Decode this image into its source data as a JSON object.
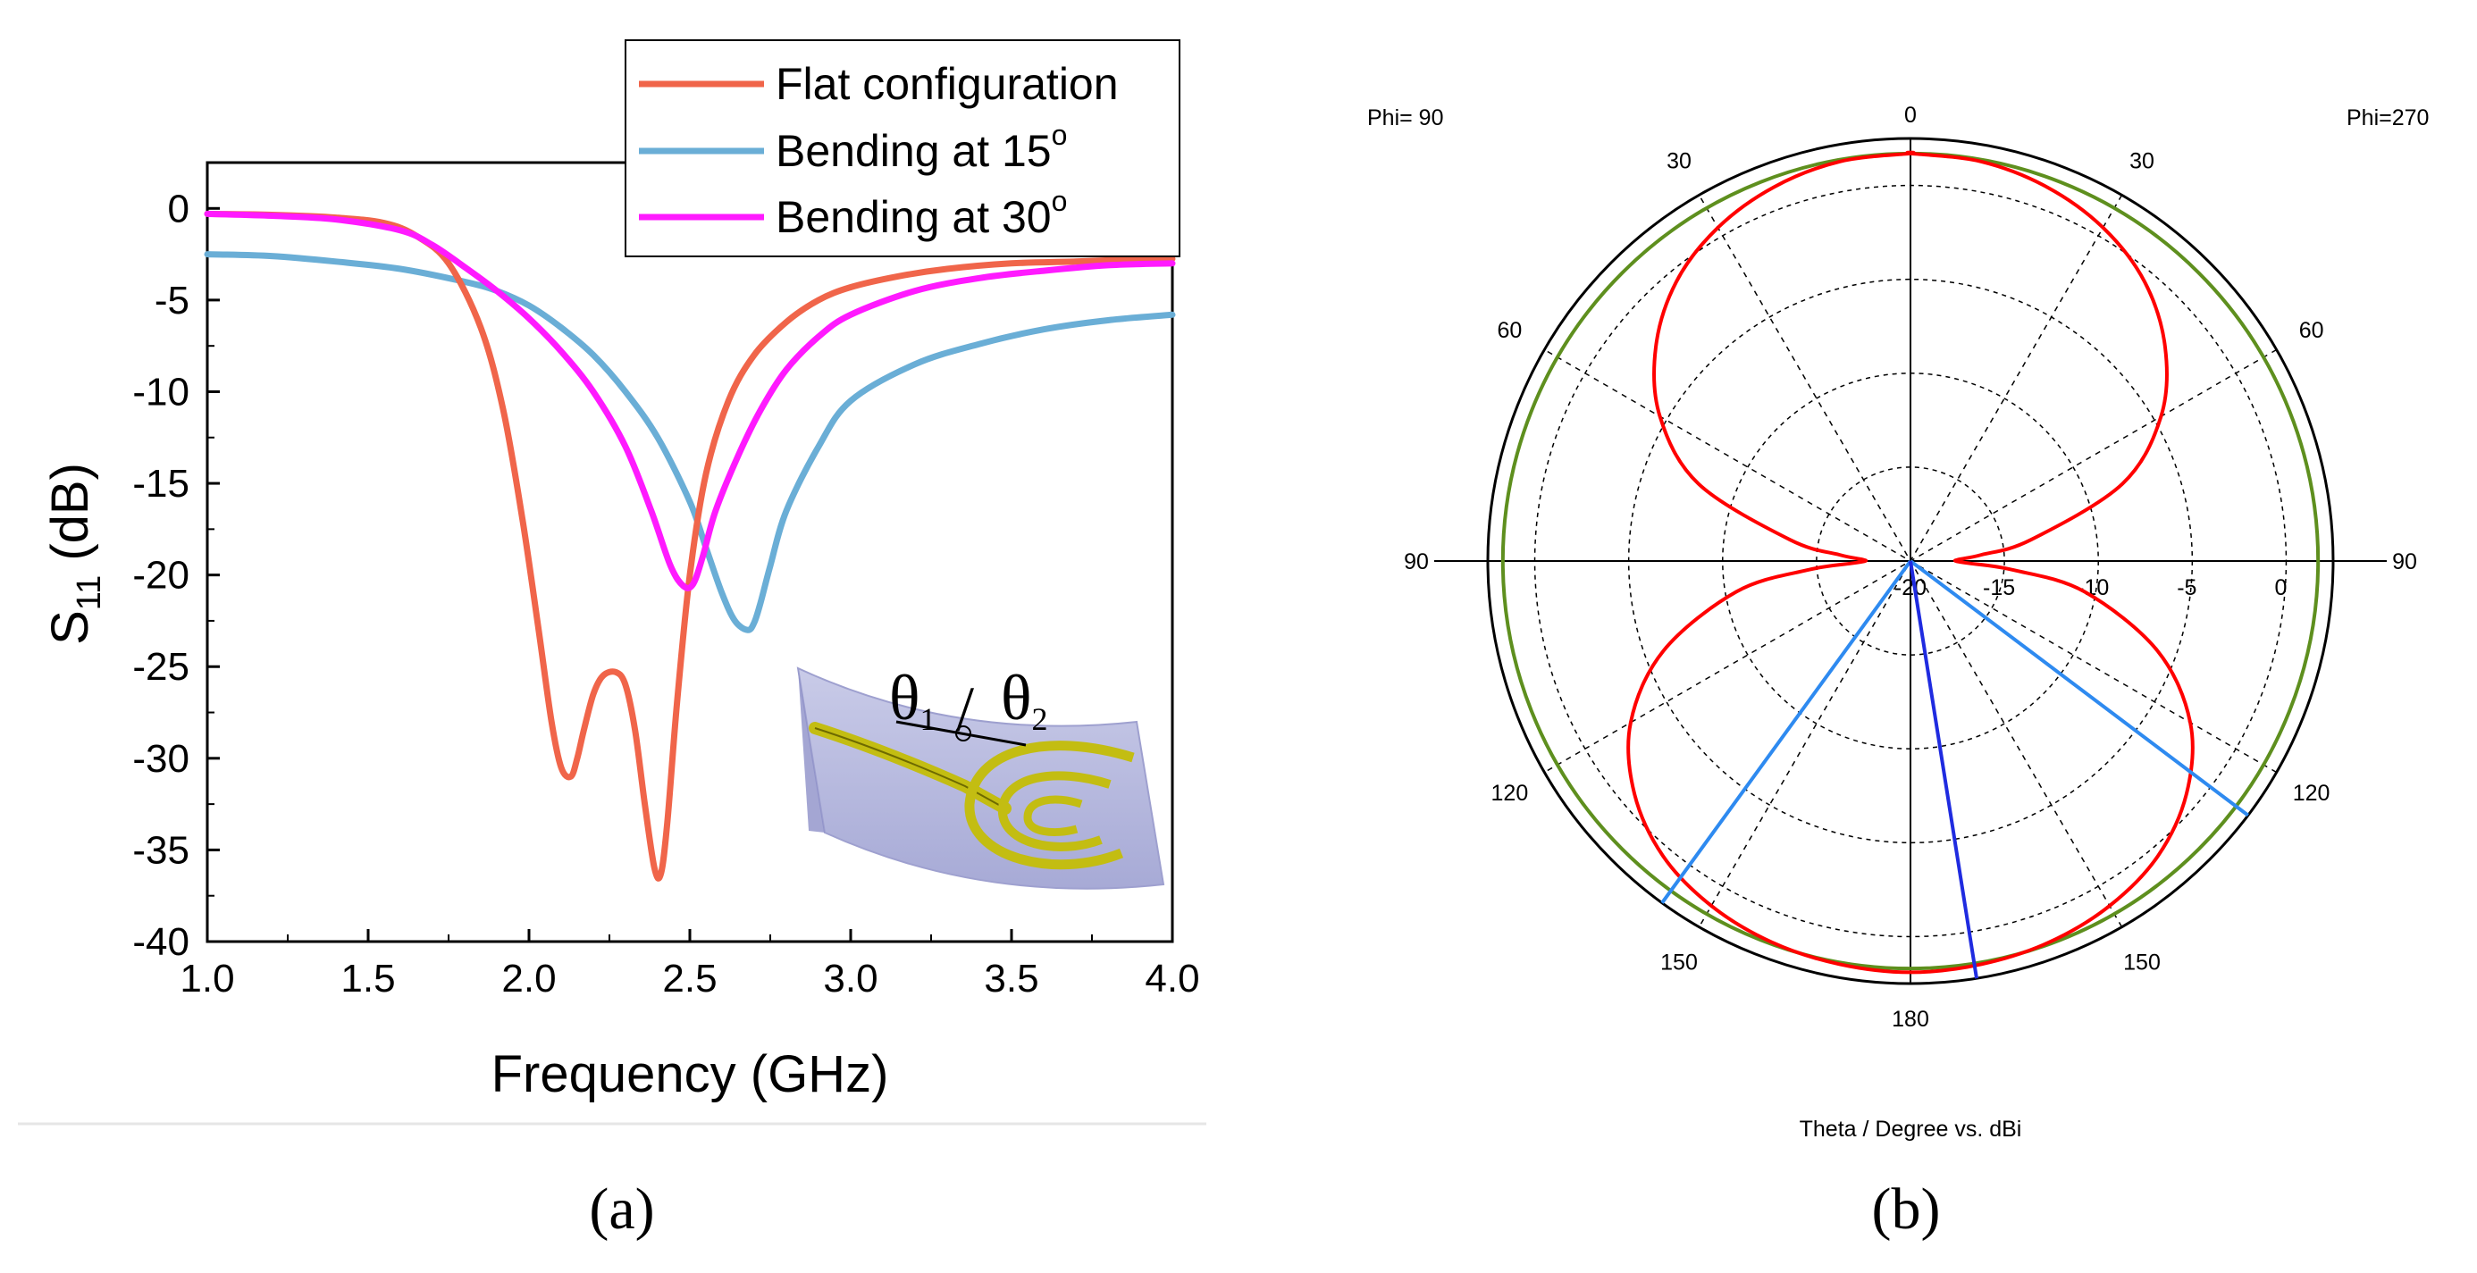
{
  "chart_data": [
    {
      "type": "line",
      "panel_label": "(a)",
      "xlabel": "Frequency (GHz)",
      "ylabel": {
        "main": "S",
        "sub": "11",
        "unit": " (dB)"
      },
      "xlim": [
        1.0,
        4.0
      ],
      "ylim": [
        -40,
        2.5
      ],
      "xticks": [
        1.0,
        1.5,
        2.0,
        2.5,
        3.0,
        3.5,
        4.0
      ],
      "xtick_labels": [
        "1.0",
        "1.5",
        "2.0",
        "2.5",
        "3.0",
        "3.5",
        "4.0"
      ],
      "yticks": [
        0,
        -5,
        -10,
        -15,
        -20,
        -25,
        -30,
        -35,
        -40
      ],
      "ytick_labels": [
        "0",
        "-5",
        "-10",
        "-15",
        "-20",
        "-25",
        "-30",
        "-35",
        "-40"
      ],
      "legend_position": "top-right",
      "series": [
        {
          "name": "Flat configuration",
          "label_main": "Flat configuration",
          "label_sup": "",
          "color": "#F0654A",
          "x": [
            1.0,
            1.2,
            1.4,
            1.55,
            1.65,
            1.75,
            1.85,
            1.92,
            1.98,
            2.03,
            2.07,
            2.1,
            2.13,
            2.15,
            2.17,
            2.2,
            2.23,
            2.27,
            2.3,
            2.33,
            2.36,
            2.39,
            2.41,
            2.43,
            2.46,
            2.5,
            2.55,
            2.62,
            2.7,
            2.8,
            2.9,
            3.0,
            3.15,
            3.3,
            3.5,
            3.7,
            3.85,
            4.0
          ],
          "y": [
            -0.3,
            -0.35,
            -0.5,
            -0.8,
            -1.5,
            -3.0,
            -6.5,
            -11.0,
            -17.0,
            -23.0,
            -28.0,
            -30.5,
            -31.0,
            -30.0,
            -28.5,
            -26.5,
            -25.5,
            -25.3,
            -26.0,
            -28.5,
            -32.5,
            -36.0,
            -36.3,
            -33.5,
            -27.0,
            -20.0,
            -14.5,
            -10.5,
            -8.0,
            -6.2,
            -5.0,
            -4.3,
            -3.7,
            -3.3,
            -3.0,
            -2.9,
            -2.8,
            -2.75
          ]
        },
        {
          "name": "Bending at 15o",
          "label_main": "Bending at 15",
          "label_sup": "o",
          "color": "#6AAED6",
          "x": [
            1.0,
            1.2,
            1.4,
            1.6,
            1.8,
            1.9,
            2.0,
            2.1,
            2.2,
            2.3,
            2.4,
            2.5,
            2.55,
            2.6,
            2.64,
            2.68,
            2.7,
            2.72,
            2.75,
            2.8,
            2.9,
            3.0,
            3.2,
            3.4,
            3.6,
            3.8,
            4.0
          ],
          "y": [
            -2.5,
            -2.6,
            -2.9,
            -3.3,
            -4.0,
            -4.5,
            -5.3,
            -6.5,
            -8.0,
            -10.0,
            -12.5,
            -16.0,
            -18.5,
            -21.0,
            -22.5,
            -23.0,
            -22.6,
            -21.5,
            -19.5,
            -16.5,
            -13.0,
            -10.5,
            -8.5,
            -7.4,
            -6.6,
            -6.1,
            -5.8
          ]
        },
        {
          "name": "Bending at 30o",
          "label_main": "Bending at 30",
          "label_sup": "o",
          "color": "#FF1AFF",
          "x": [
            1.0,
            1.2,
            1.4,
            1.6,
            1.7,
            1.8,
            1.9,
            2.0,
            2.1,
            2.2,
            2.3,
            2.38,
            2.44,
            2.48,
            2.51,
            2.54,
            2.58,
            2.65,
            2.72,
            2.8,
            2.9,
            3.0,
            3.2,
            3.4,
            3.6,
            3.8,
            4.0
          ],
          "y": [
            -0.3,
            -0.4,
            -0.6,
            -1.2,
            -2.0,
            -3.2,
            -4.5,
            -6.0,
            -7.8,
            -10.0,
            -13.0,
            -16.5,
            -19.5,
            -20.6,
            -20.5,
            -19.0,
            -16.5,
            -13.5,
            -11.0,
            -8.8,
            -7.0,
            -5.8,
            -4.5,
            -3.8,
            -3.4,
            -3.1,
            -3.0
          ]
        }
      ],
      "inset": {
        "theta_1": "θ",
        "theta_1_sub": "1",
        "theta_2": "θ",
        "theta_2_sub": "2",
        "separator": "/"
      }
    },
    {
      "type": "polar",
      "panel_label": "(b)",
      "caption": "Theta / Degree vs. dBi",
      "left_label": "Phi= 90",
      "right_label": "Phi=270",
      "angle_labels": [
        "0",
        "30",
        "30",
        "60",
        "60",
        "90",
        "90",
        "120",
        "120",
        "150",
        "150",
        "180"
      ],
      "angle_values_deg": [
        0,
        -30,
        30,
        -60,
        60,
        -90,
        90,
        -120,
        120,
        -150,
        150,
        180
      ],
      "radial_axis": {
        "min": -20,
        "max": 2.5,
        "unit": "dBi"
      },
      "radial_ticks": [
        -20,
        -15,
        -10,
        -5,
        0
      ],
      "radial_tick_labels": [
        "-20",
        "-15",
        "-10",
        "-5",
        "0"
      ],
      "series": [
        {
          "name": "reference circle",
          "color": "#5E8F1E",
          "constant_gain_dbi": 1.7
        },
        {
          "name": "radiation pattern",
          "color": "#FF0000",
          "theta_deg": [
            0,
            10,
            20,
            30,
            40,
            50,
            60,
            70,
            80,
            85,
            88,
            90,
            92,
            95,
            100,
            110,
            120,
            130,
            140,
            150,
            160,
            170,
            180
          ],
          "gain_dbi": [
            1.7,
            1.6,
            1.2,
            0.5,
            -0.6,
            -2.3,
            -4.6,
            -8.0,
            -13.5,
            -16.2,
            -17.4,
            -17.6,
            -17.0,
            -14.5,
            -10.6,
            -6.0,
            -2.8,
            -0.8,
            0.5,
            1.2,
            1.6,
            1.8,
            1.9
          ]
        }
      ],
      "markers": [
        {
          "name": "marker-right",
          "color": "#2E8AF0",
          "theta_deg": 127,
          "gain_dbi": 2.5
        },
        {
          "name": "marker-left",
          "color": "#2E8AF0",
          "theta_deg": -144,
          "gain_dbi": 2.5
        },
        {
          "name": "marker-bottom",
          "color": "#1F2BE0",
          "theta_deg": 171,
          "gain_dbi": 2.5
        }
      ]
    }
  ]
}
